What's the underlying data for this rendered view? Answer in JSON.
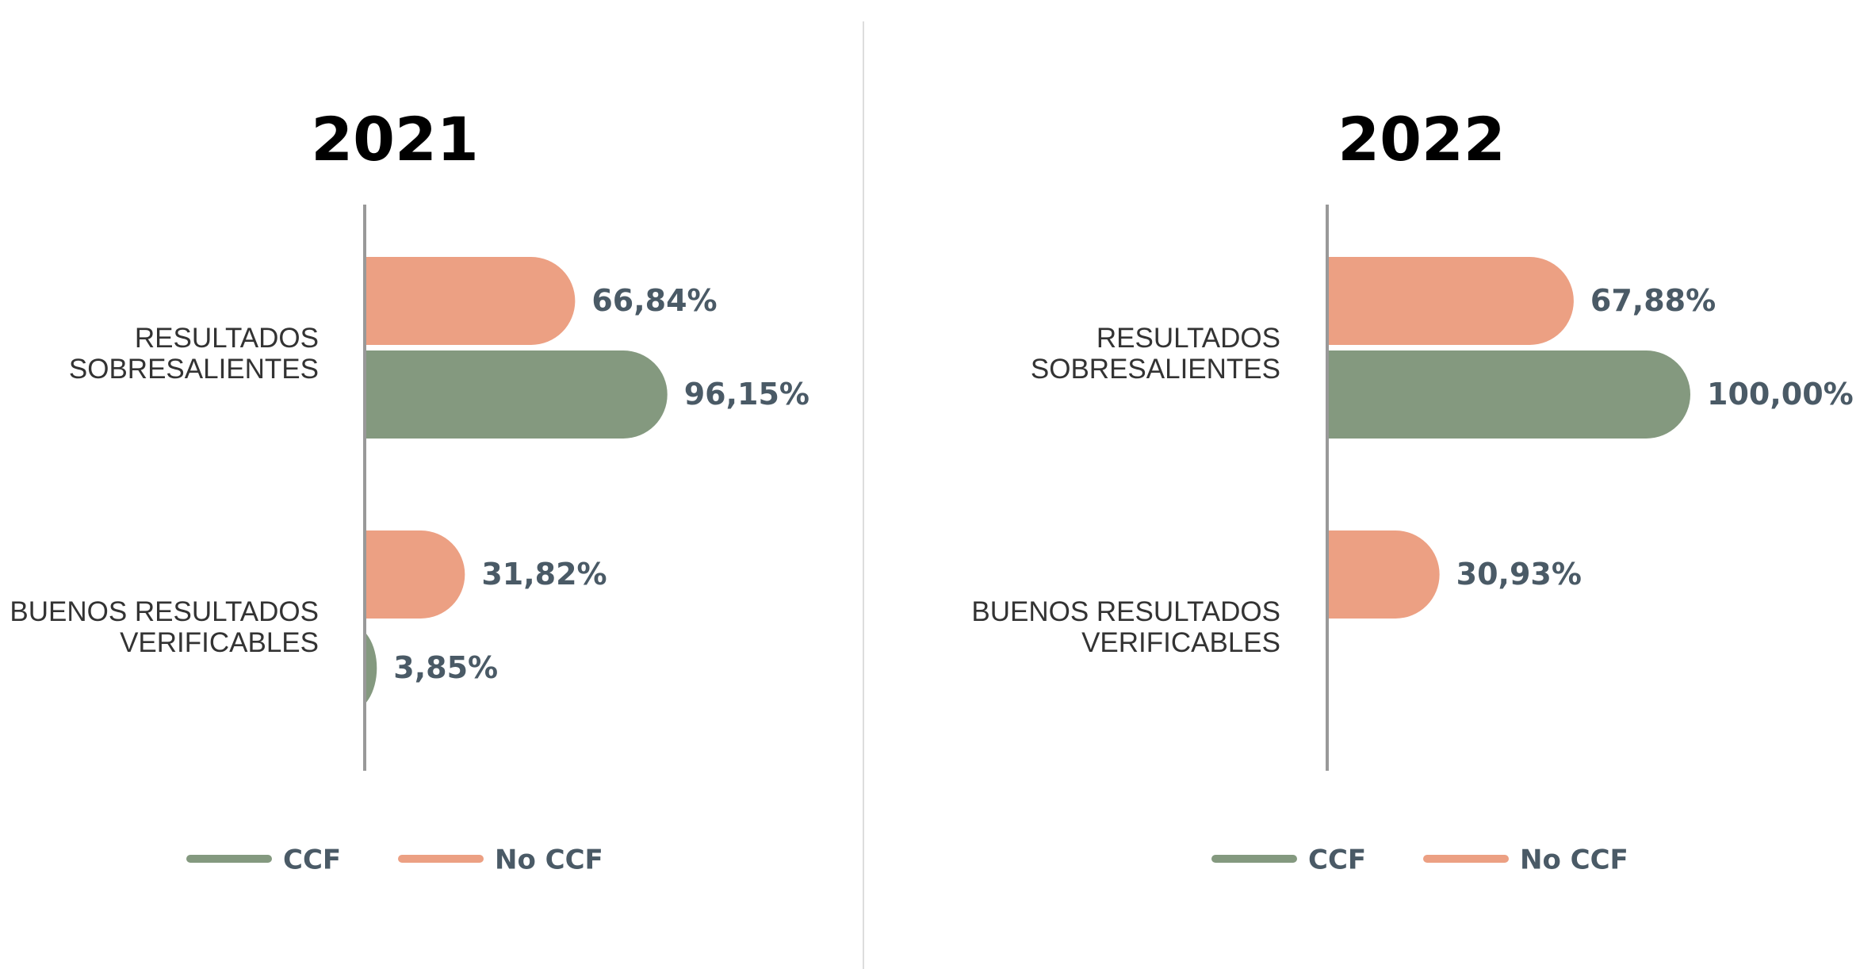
{
  "chart_data": [
    {
      "type": "bar",
      "title": "2021",
      "categories": [
        "RESULTADOS\nSOBRESALIENTES",
        "BUENOS RESULTADOS\nVERIFICABLES"
      ],
      "series": [
        {
          "name": "CCF",
          "color": "#84997f",
          "values": [
            96.15,
            3.85
          ],
          "value_labels": [
            "96,15%",
            "3,85%"
          ]
        },
        {
          "name": "No CCF",
          "color": "#eca083",
          "values": [
            66.84,
            31.82
          ],
          "value_labels": [
            "66,84%",
            "31,82%"
          ]
        }
      ]
    },
    {
      "type": "bar",
      "title": "2022",
      "categories": [
        "RESULTADOS\nSOBRESALIENTES",
        "BUENOS RESULTADOS\nVERIFICABLES"
      ],
      "series": [
        {
          "name": "CCF",
          "color": "#84997f",
          "values": [
            100,
            null
          ],
          "value_labels": [
            "100,00%",
            null
          ]
        },
        {
          "name": "No CCF",
          "color": "#eca083",
          "values": [
            67.88,
            30.93
          ],
          "value_labels": [
            "67,88%",
            "30,93%"
          ]
        }
      ]
    }
  ]
}
